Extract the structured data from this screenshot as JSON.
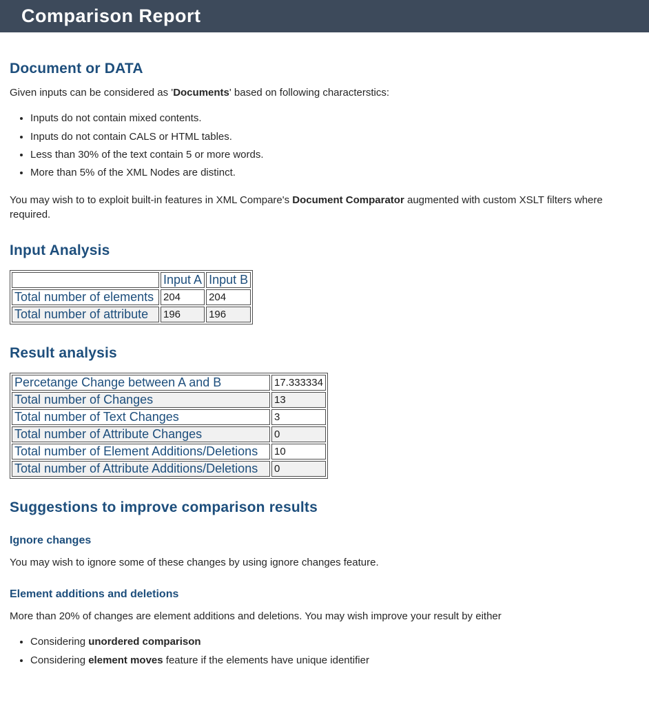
{
  "title_bar": {
    "title": "Comparison Report"
  },
  "colors": {
    "header_bg": "#3d4a5b",
    "heading_text": "#1d4e7c",
    "body_text": "#262626",
    "table_border": "#4d4d4d",
    "row_stripe": "#f1f1f1"
  },
  "document_section": {
    "heading": "Document or DATA",
    "intro_pre": "Given inputs can be considered as '",
    "intro_bold": "Documents",
    "intro_post": "' based on following characterstics:",
    "bullets": [
      "Inputs do not contain mixed contents.",
      "Inputs do not contain CALS or HTML tables.",
      "Less than 30% of the text contain 5 or more words.",
      "More than 5% of the XML Nodes are distinct."
    ],
    "note_pre": "You may wish to to exploit built-in features in XML Compare's ",
    "note_bold": "Document Comparator",
    "note_post": " augmented with custom XSLT filters where required."
  },
  "input_analysis": {
    "heading": "Input Analysis",
    "col_a": "Input A",
    "col_b": "Input B",
    "rows": [
      {
        "label": "Total number of elements",
        "a": "204",
        "b": "204"
      },
      {
        "label": "Total number of attribute",
        "a": "196",
        "b": "196"
      }
    ]
  },
  "result_analysis": {
    "heading": "Result analysis",
    "rows": [
      {
        "label": "Percetange Change between A and B",
        "value": "17.333334"
      },
      {
        "label": "Total number of Changes",
        "value": "13"
      },
      {
        "label": "Total number of Text Changes",
        "value": "3"
      },
      {
        "label": "Total number of Attribute Changes",
        "value": "0"
      },
      {
        "label": "Total number of Element Additions/Deletions",
        "value": "10"
      },
      {
        "label": "Total number of Attribute Additions/Deletions",
        "value": "0"
      }
    ]
  },
  "suggestions": {
    "heading": "Suggestions to improve comparison results",
    "ignore": {
      "heading": "Ignore changes",
      "text": "You may wish to ignore some of these changes by using ignore changes feature."
    },
    "additions": {
      "heading": "Element additions and deletions",
      "text": "More than 20% of changes are element additions and deletions. You may wish improve your result by either",
      "bullets": [
        {
          "pre": "Considering ",
          "bold": "unordered comparison",
          "post": ""
        },
        {
          "pre": "Considering ",
          "bold": "element moves",
          "post": " feature if the elements have unique identifier"
        }
      ]
    }
  }
}
